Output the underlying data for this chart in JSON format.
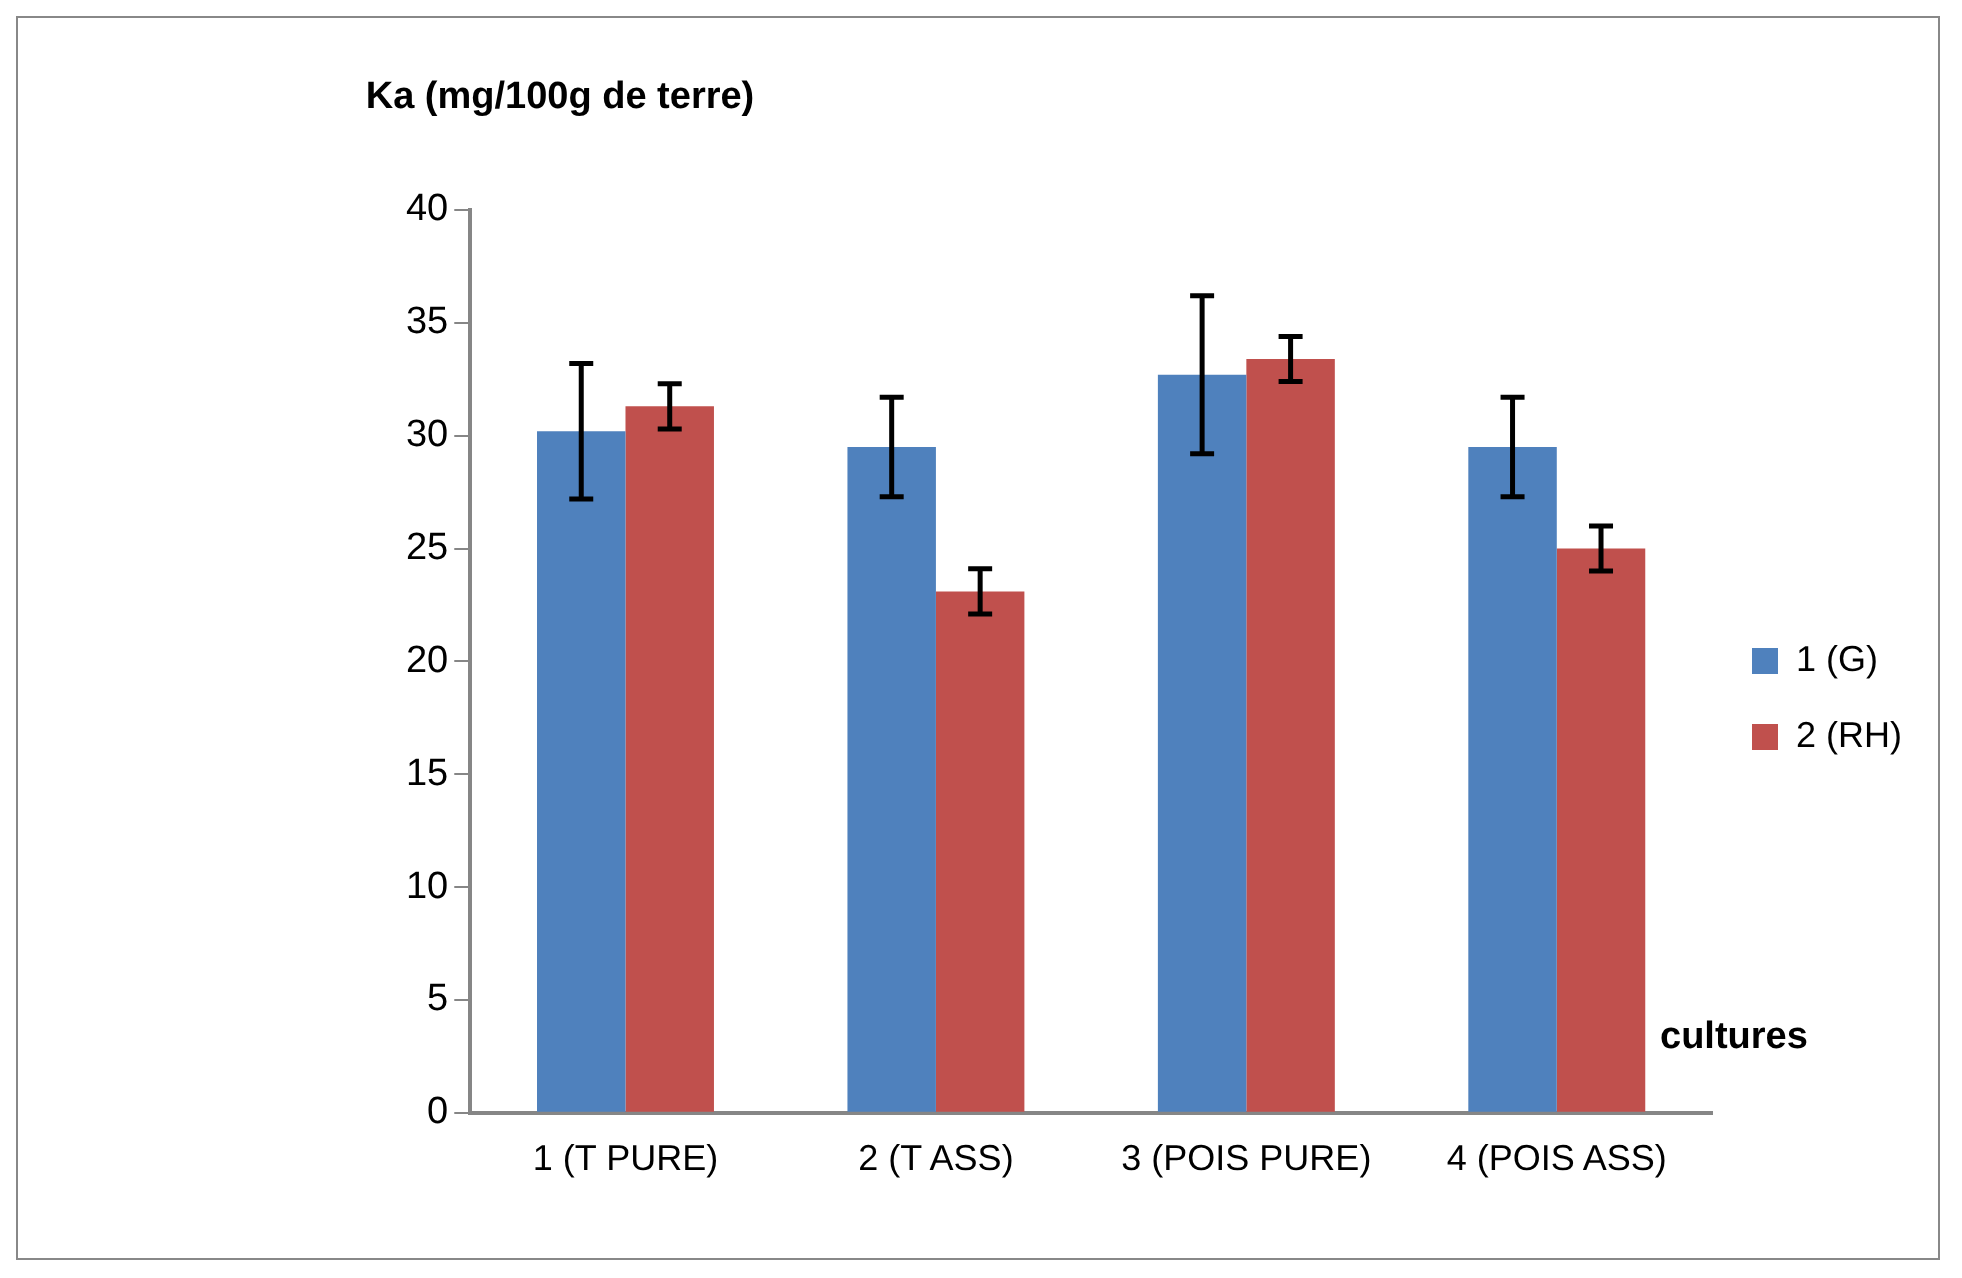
{
  "chart_data": {
    "type": "bar",
    "ylabel": "Ka (mg/100g de terre)",
    "xlabel": "cultures",
    "categories": [
      "1 (T PURE)",
      "2 (T ASS)",
      "3 (POIS PURE)",
      "4 (POIS ASS)"
    ],
    "series": [
      {
        "name": "1 (G)",
        "color": "#4f81bd",
        "values": [
          30.2,
          29.5,
          32.7,
          29.5
        ],
        "errors": [
          3.0,
          2.2,
          3.5,
          2.2
        ]
      },
      {
        "name": "2 (RH)",
        "color": "#c0504d",
        "values": [
          31.3,
          23.1,
          33.4,
          25.0
        ],
        "errors": [
          1.0,
          1.0,
          1.0,
          1.0
        ]
      }
    ],
    "ylim": [
      0,
      40
    ],
    "yticks": [
      0,
      5,
      10,
      15,
      20,
      25,
      30,
      35,
      40
    ],
    "grid": false,
    "legend": "right"
  }
}
